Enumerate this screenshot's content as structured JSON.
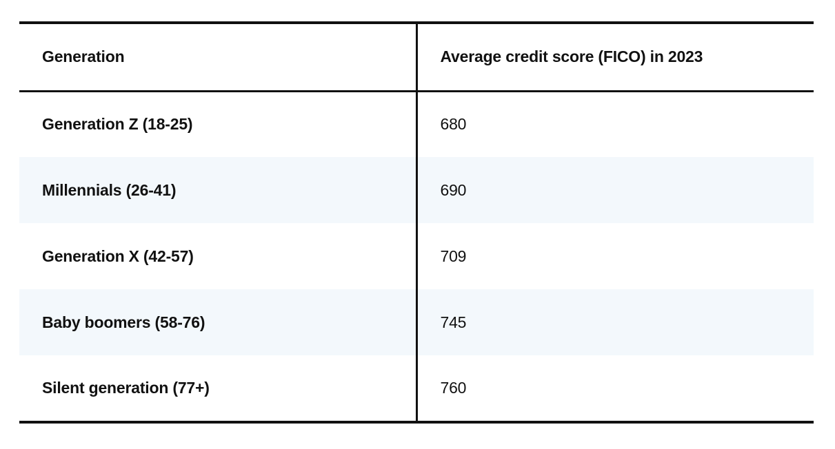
{
  "table": {
    "headers": {
      "generation": "Generation",
      "score": "Average credit score (FICO) in 2023"
    },
    "rows": [
      {
        "generation": "Generation Z (18-25)",
        "score": "680"
      },
      {
        "generation": "Millennials (26-41)",
        "score": "690"
      },
      {
        "generation": "Generation X (42-57)",
        "score": "709"
      },
      {
        "generation": "Baby boomers (58-76)",
        "score": "745"
      },
      {
        "generation": "Silent generation (77+)",
        "score": "760"
      }
    ],
    "colors": {
      "border": "#111111",
      "stripe": "#f3f8fc",
      "text": "#111111"
    }
  }
}
